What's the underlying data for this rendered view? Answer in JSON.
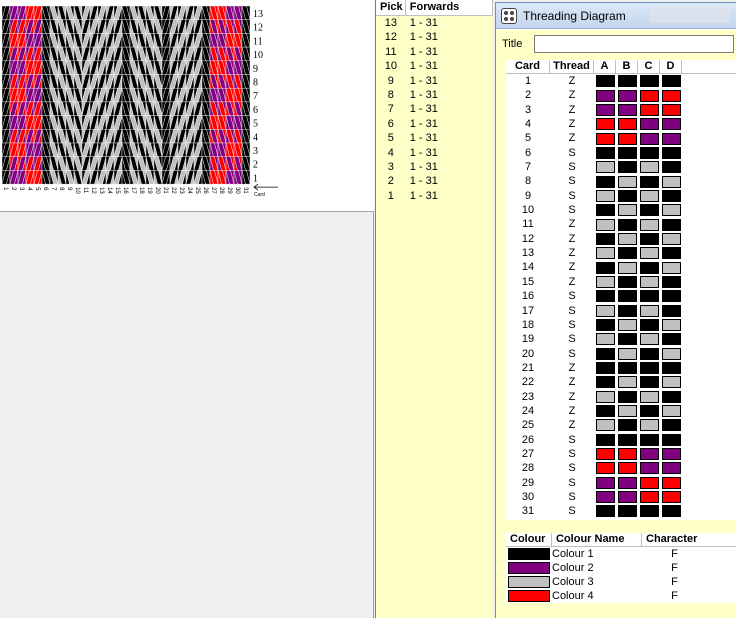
{
  "palette": {
    "1": "#000000",
    "2": "#800080",
    "3": "#c0c0c0",
    "4": "#ff0000"
  },
  "pattern": {
    "row_labels": [
      "13",
      "12",
      "11",
      "10",
      "9",
      "8",
      "7",
      "6",
      "5",
      "4",
      "3",
      "2",
      "1"
    ],
    "card_labels": [
      "1",
      "2",
      "3",
      "4",
      "5",
      "6",
      "7",
      "8",
      "9",
      "10",
      "11",
      "12",
      "13",
      "14",
      "15",
      "16",
      "17",
      "18",
      "19",
      "20",
      "21",
      "22",
      "23",
      "24",
      "25",
      "26",
      "27",
      "28",
      "29",
      "30",
      "31"
    ],
    "card_caption": "Card"
  },
  "pick_list": {
    "header_pick": "Pick",
    "header_forwards": "Forwards",
    "rows": [
      {
        "pick": "13",
        "range": "1 - 31"
      },
      {
        "pick": "12",
        "range": "1 - 31"
      },
      {
        "pick": "11",
        "range": "1 - 31"
      },
      {
        "pick": "10",
        "range": "1 - 31"
      },
      {
        "pick": "9",
        "range": "1 - 31"
      },
      {
        "pick": "8",
        "range": "1 - 31"
      },
      {
        "pick": "7",
        "range": "1 - 31"
      },
      {
        "pick": "6",
        "range": "1 - 31"
      },
      {
        "pick": "5",
        "range": "1 - 31"
      },
      {
        "pick": "4",
        "range": "1 - 31"
      },
      {
        "pick": "3",
        "range": "1 - 31"
      },
      {
        "pick": "2",
        "range": "1 - 31"
      },
      {
        "pick": "1",
        "range": "1 - 31"
      }
    ]
  },
  "threading": {
    "window_title": "Threading Diagram",
    "title_label": "Title",
    "title_value": "",
    "headers": {
      "card": "Card",
      "thread": "Thread",
      "a": "A",
      "b": "B",
      "c": "C",
      "d": "D"
    },
    "cards": [
      {
        "card": "1",
        "thread": "Z",
        "holes": [
          1,
          1,
          1,
          1
        ]
      },
      {
        "card": "2",
        "thread": "Z",
        "holes": [
          2,
          2,
          4,
          4
        ]
      },
      {
        "card": "3",
        "thread": "Z",
        "holes": [
          2,
          2,
          4,
          4
        ]
      },
      {
        "card": "4",
        "thread": "Z",
        "holes": [
          4,
          4,
          2,
          2
        ]
      },
      {
        "card": "5",
        "thread": "Z",
        "holes": [
          4,
          4,
          2,
          2
        ]
      },
      {
        "card": "6",
        "thread": "S",
        "holes": [
          1,
          1,
          1,
          1
        ]
      },
      {
        "card": "7",
        "thread": "S",
        "holes": [
          3,
          1,
          3,
          1
        ]
      },
      {
        "card": "8",
        "thread": "S",
        "holes": [
          1,
          3,
          1,
          3
        ]
      },
      {
        "card": "9",
        "thread": "S",
        "holes": [
          3,
          1,
          3,
          1
        ]
      },
      {
        "card": "10",
        "thread": "S",
        "holes": [
          1,
          3,
          1,
          3
        ]
      },
      {
        "card": "11",
        "thread": "Z",
        "holes": [
          3,
          1,
          3,
          1
        ]
      },
      {
        "card": "12",
        "thread": "Z",
        "holes": [
          1,
          3,
          1,
          3
        ]
      },
      {
        "card": "13",
        "thread": "Z",
        "holes": [
          3,
          1,
          3,
          1
        ]
      },
      {
        "card": "14",
        "thread": "Z",
        "holes": [
          1,
          3,
          1,
          3
        ]
      },
      {
        "card": "15",
        "thread": "Z",
        "holes": [
          3,
          1,
          3,
          1
        ]
      },
      {
        "card": "16",
        "thread": "S",
        "holes": [
          1,
          1,
          1,
          1
        ]
      },
      {
        "card": "17",
        "thread": "S",
        "holes": [
          3,
          1,
          3,
          1
        ]
      },
      {
        "card": "18",
        "thread": "S",
        "holes": [
          1,
          3,
          1,
          3
        ]
      },
      {
        "card": "19",
        "thread": "S",
        "holes": [
          3,
          1,
          3,
          1
        ]
      },
      {
        "card": "20",
        "thread": "S",
        "holes": [
          1,
          3,
          1,
          3
        ]
      },
      {
        "card": "21",
        "thread": "Z",
        "holes": [
          1,
          1,
          1,
          1
        ]
      },
      {
        "card": "22",
        "thread": "Z",
        "holes": [
          1,
          3,
          1,
          3
        ]
      },
      {
        "card": "23",
        "thread": "Z",
        "holes": [
          3,
          1,
          3,
          1
        ]
      },
      {
        "card": "24",
        "thread": "Z",
        "holes": [
          1,
          3,
          1,
          3
        ]
      },
      {
        "card": "25",
        "thread": "Z",
        "holes": [
          3,
          1,
          3,
          1
        ]
      },
      {
        "card": "26",
        "thread": "S",
        "holes": [
          1,
          1,
          1,
          1
        ]
      },
      {
        "card": "27",
        "thread": "S",
        "holes": [
          4,
          4,
          2,
          2
        ]
      },
      {
        "card": "28",
        "thread": "S",
        "holes": [
          4,
          4,
          2,
          2
        ]
      },
      {
        "card": "29",
        "thread": "S",
        "holes": [
          2,
          2,
          4,
          4
        ]
      },
      {
        "card": "30",
        "thread": "S",
        "holes": [
          2,
          2,
          4,
          4
        ]
      },
      {
        "card": "31",
        "thread": "S",
        "holes": [
          1,
          1,
          1,
          1
        ]
      }
    ]
  },
  "colours": {
    "headers": {
      "colour": "Colour",
      "name": "Colour Name",
      "character": "Character"
    },
    "rows": [
      {
        "swatch": "1",
        "name": "Colour 1",
        "character": "F"
      },
      {
        "swatch": "2",
        "name": "Colour 2",
        "character": "F"
      },
      {
        "swatch": "3",
        "name": "Colour 3",
        "character": "F"
      },
      {
        "swatch": "4",
        "name": "Colour 4",
        "character": "F"
      }
    ]
  }
}
